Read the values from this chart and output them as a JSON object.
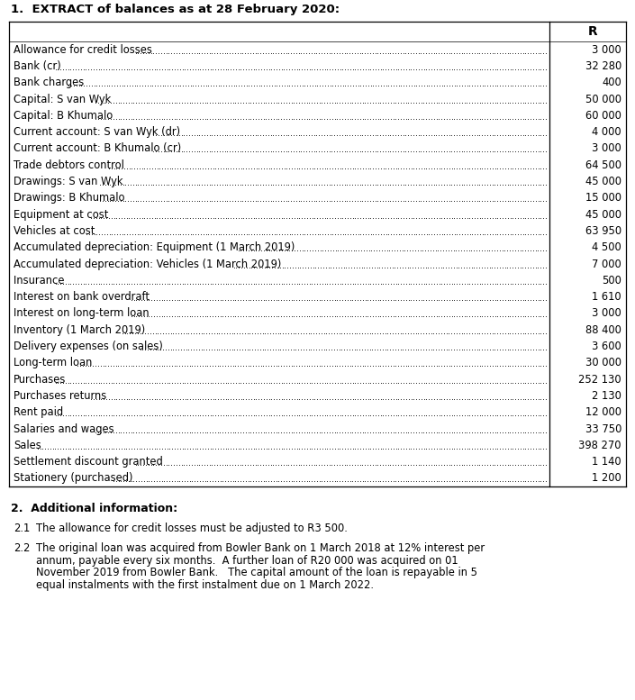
{
  "title": "1.  EXTRACT of balances as at 28 February 2020:",
  "col_header": "R",
  "rows": [
    [
      "Allowance for credit losses ",
      "3 000"
    ],
    [
      "Bank (cr) ",
      "32 280"
    ],
    [
      "Bank charges",
      "400"
    ],
    [
      "Capital: S van Wyk ",
      "50 000"
    ],
    [
      "Capital: B Khumalo ",
      "60 000"
    ],
    [
      "Current account: S van Wyk (dr) ",
      "4 000"
    ],
    [
      "Current account: B Khumalo (cr) ",
      "3 000"
    ],
    [
      "Trade debtors control",
      "64 500"
    ],
    [
      "Drawings: S van Wyk",
      "45 000"
    ],
    [
      "Drawings: B Khumalo ",
      "15 000"
    ],
    [
      "Equipment at cost",
      "45 000"
    ],
    [
      "Vehicles at cost  ",
      "63 950"
    ],
    [
      "Accumulated depreciation: Equipment (1 March 2019) ",
      "4 500"
    ],
    [
      "Accumulated depreciation: Vehicles (1 March 2019)",
      "7 000"
    ],
    [
      "Insurance ",
      "500"
    ],
    [
      "Interest on bank overdraft",
      "1 610"
    ],
    [
      "Interest on long-term loan",
      "3 000"
    ],
    [
      "Inventory (1 March 2019)",
      "88 400"
    ],
    [
      "Delivery expenses (on sales) ",
      "3 600"
    ],
    [
      "Long-term loan",
      "30 000"
    ],
    [
      "Purchases",
      "252 130"
    ],
    [
      "Purchases returns ",
      "2 130"
    ],
    [
      "Rent paid",
      "12 000"
    ],
    [
      "Salaries and wages ",
      "33 750"
    ],
    [
      "Sales",
      "398 270"
    ],
    [
      "Settlement discount granted ",
      "1 140"
    ],
    [
      "Stationery (purchased)",
      "1 200"
    ]
  ],
  "section2_title": "2.  Additional information:",
  "point_2_1_label": "2.1",
  "point_2_1_text": "The allowance for credit losses must be adjusted to R3 500.",
  "point_2_2_label": "2.2",
  "point_2_2_line1": "The original loan was acquired from Bowler Bank on 1 March 2018 at 12% interest per",
  "point_2_2_line2": "annum, payable every six months.  A further loan of R20 000 was acquired on 01",
  "point_2_2_line3": "November 2019 from Bowler Bank.   The capital amount of the loan is repayable in 5",
  "point_2_2_line4": "equal instalments with the first instalment due on 1 March 2022.",
  "bg_color": "#ffffff",
  "text_color": "#000000",
  "border_color": "#000000",
  "row_font_size": 8.3,
  "title_font_size": 9.5,
  "header_font_size": 8.8,
  "body_font_size": 8.3
}
